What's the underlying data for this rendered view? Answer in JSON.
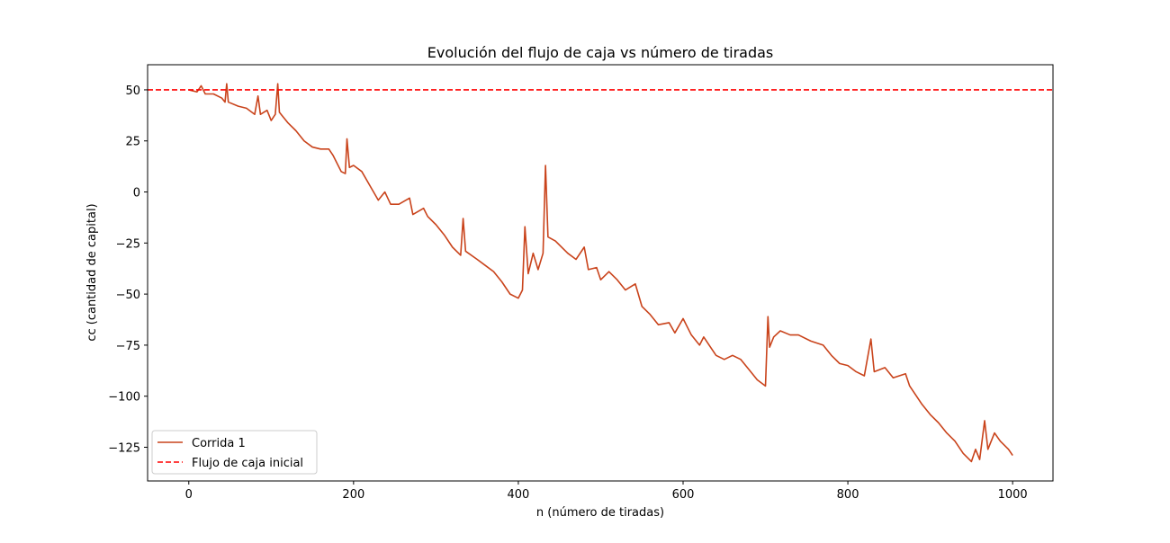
{
  "chart_data": {
    "type": "line",
    "title": "Evolución del flujo de caja vs número de tiradas",
    "x_label": "n (número de tiradas)",
    "y_label": "cc (cantidad de capital)",
    "x": [
      0,
      10,
      15,
      20,
      30,
      40,
      44,
      46,
      48,
      60,
      70,
      80,
      84,
      87,
      95,
      100,
      105,
      108,
      110,
      120,
      130,
      140,
      150,
      160,
      170,
      175,
      185,
      190,
      192,
      195,
      200,
      210,
      220,
      230,
      238,
      245,
      255,
      268,
      272,
      285,
      290,
      300,
      310,
      320,
      330,
      333,
      336,
      350,
      360,
      370,
      380,
      390,
      400,
      405,
      408,
      412,
      418,
      424,
      430,
      433,
      436,
      445,
      460,
      470,
      480,
      485,
      495,
      500,
      510,
      520,
      530,
      542,
      550,
      560,
      570,
      583,
      590,
      600,
      610,
      620,
      625,
      630,
      640,
      650,
      660,
      670,
      680,
      690,
      700,
      703,
      705,
      710,
      718,
      730,
      740,
      755,
      770,
      780,
      790,
      800,
      810,
      820,
      828,
      832,
      845,
      855,
      870,
      875,
      890,
      900,
      910,
      920,
      930,
      940,
      950,
      955,
      960,
      966,
      970,
      978,
      985,
      995,
      1000
    ],
    "series": [
      {
        "name": "Corrida 1",
        "color": "#c9431b",
        "values": [
          50,
          49,
          52,
          48,
          48,
          46,
          44,
          53,
          44,
          42,
          41,
          38,
          47,
          38,
          40,
          35,
          38,
          53,
          39,
          34,
          30,
          25,
          22,
          21,
          21,
          18,
          10,
          9,
          26,
          12,
          13,
          10,
          3,
          -4,
          0,
          -6,
          -6,
          -3,
          -11,
          -8,
          -12,
          -16,
          -21,
          -27,
          -31,
          -13,
          -29,
          -33,
          -36,
          -39,
          -44,
          -50,
          -52,
          -48,
          -17,
          -40,
          -30,
          -38,
          -30,
          13,
          -22,
          -24,
          -30,
          -33,
          -27,
          -38,
          -37,
          -43,
          -39,
          -43,
          -48,
          -45,
          -56,
          -60,
          -65,
          -64,
          -69,
          -62,
          -70,
          -75,
          -71,
          -74,
          -80,
          -82,
          -80,
          -82,
          -87,
          -92,
          -95,
          -61,
          -76,
          -71,
          -68,
          -70,
          -70,
          -73,
          -75,
          -80,
          -84,
          -85,
          -88,
          -90,
          -72,
          -88,
          -86,
          -91,
          -89,
          -95,
          -104,
          -109,
          -113,
          -118,
          -122,
          -128,
          -132,
          -126,
          -131,
          -112,
          -126,
          -118,
          -122,
          -126,
          -129
        ]
      }
    ],
    "reference_lines": [
      {
        "name": "Flujo de caja inicial",
        "value": 50,
        "color": "#ff0000",
        "style": "dashed"
      }
    ],
    "xlim": [
      -50,
      1049
    ],
    "ylim": [
      -141.5,
      62.3
    ],
    "xticks": [
      0,
      200,
      400,
      600,
      800,
      1000
    ],
    "yticks": [
      {
        "value": -125,
        "label": "−125"
      },
      {
        "value": -100,
        "label": "−100"
      },
      {
        "value": -75,
        "label": "−75"
      },
      {
        "value": -50,
        "label": "−50"
      },
      {
        "value": -25,
        "label": "−25"
      },
      0,
      25,
      50
    ],
    "legend": "lower left",
    "grid": false
  }
}
